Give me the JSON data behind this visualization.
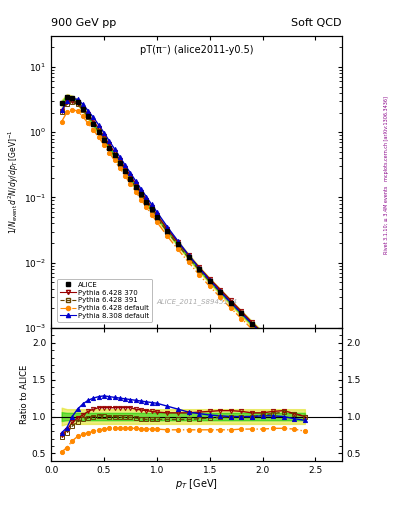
{
  "title_left": "900 GeV pp",
  "title_right": "Soft QCD",
  "plot_title": "pT(π⁻) (alice2011-y0.5)",
  "watermark": "ALICE_2011_S8945144",
  "right_label_top": "Rivet 3.1.10; ≥ 3.4M events",
  "right_label_bot": "mcplots.cern.ch [arXiv:1306.3436]",
  "ylabel_main": "1/N_{event} d^{2}N/dy/dp_{T} [GeV]^{-1}",
  "ylabel_ratio": "Ratio to ALICE",
  "xlabel": "p_{T} [GeV]",
  "xlim": [
    0.0,
    2.75
  ],
  "ylim_main": [
    0.001,
    30
  ],
  "ylim_ratio": [
    0.4,
    2.2
  ],
  "pt_values": [
    0.1,
    0.15,
    0.2,
    0.25,
    0.3,
    0.35,
    0.4,
    0.45,
    0.5,
    0.55,
    0.6,
    0.65,
    0.7,
    0.75,
    0.8,
    0.85,
    0.9,
    0.95,
    1.0,
    1.1,
    1.2,
    1.3,
    1.4,
    1.5,
    1.6,
    1.7,
    1.8,
    1.9,
    2.0,
    2.1,
    2.2,
    2.3,
    2.4
  ],
  "alice_data": [
    2.8,
    3.5,
    3.3,
    2.9,
    2.3,
    1.75,
    1.35,
    1.02,
    0.77,
    0.58,
    0.44,
    0.335,
    0.253,
    0.193,
    0.147,
    0.112,
    0.086,
    0.066,
    0.051,
    0.031,
    0.0195,
    0.0124,
    0.008,
    0.0053,
    0.0036,
    0.00245,
    0.00168,
    0.00116,
    0.000805,
    0.00056,
    0.000392,
    0.000275,
    0.000194
  ],
  "alice_err_rel": [
    0.06,
    0.05,
    0.05,
    0.05,
    0.05,
    0.05,
    0.05,
    0.05,
    0.05,
    0.05,
    0.05,
    0.05,
    0.05,
    0.05,
    0.05,
    0.05,
    0.05,
    0.05,
    0.05,
    0.05,
    0.05,
    0.05,
    0.05,
    0.05,
    0.05,
    0.05,
    0.05,
    0.05,
    0.05,
    0.05,
    0.05,
    0.05,
    0.05
  ],
  "ratio_370": [
    0.75,
    0.82,
    0.92,
    0.98,
    1.02,
    1.07,
    1.1,
    1.12,
    1.12,
    1.12,
    1.12,
    1.12,
    1.12,
    1.12,
    1.1,
    1.09,
    1.08,
    1.07,
    1.06,
    1.05,
    1.05,
    1.05,
    1.06,
    1.07,
    1.08,
    1.08,
    1.07,
    1.05,
    1.05,
    1.07,
    1.08,
    1.04,
    1.0
  ],
  "ratio_391": [
    0.72,
    0.78,
    0.87,
    0.93,
    0.96,
    0.98,
    1.0,
    1.01,
    1.01,
    1.0,
    1.0,
    0.99,
    0.99,
    0.99,
    0.98,
    0.97,
    0.96,
    0.96,
    0.96,
    0.96,
    0.96,
    0.96,
    0.97,
    0.98,
    0.99,
    1.0,
    1.0,
    1.0,
    1.02,
    1.04,
    1.06,
    1.04,
    1.0
  ],
  "ratio_default6": [
    0.52,
    0.58,
    0.67,
    0.73,
    0.76,
    0.78,
    0.8,
    0.82,
    0.83,
    0.84,
    0.84,
    0.84,
    0.84,
    0.84,
    0.84,
    0.83,
    0.83,
    0.83,
    0.83,
    0.82,
    0.82,
    0.82,
    0.82,
    0.82,
    0.82,
    0.82,
    0.83,
    0.83,
    0.83,
    0.84,
    0.84,
    0.83,
    0.8
  ],
  "ratio_default8": [
    0.78,
    0.85,
    1.0,
    1.1,
    1.17,
    1.22,
    1.25,
    1.27,
    1.28,
    1.27,
    1.26,
    1.25,
    1.24,
    1.23,
    1.22,
    1.21,
    1.2,
    1.19,
    1.18,
    1.14,
    1.1,
    1.06,
    1.04,
    1.02,
    1.01,
    1.0,
    1.0,
    1.0,
    1.01,
    1.01,
    1.0,
    0.97,
    0.95
  ],
  "color_alice": "#000000",
  "color_370": "#990000",
  "color_391": "#664400",
  "color_default6": "#FF8800",
  "color_default8": "#0000CC",
  "color_band_green": "#00CC00",
  "color_band_yellow": "#CCCC00",
  "legend_labels": [
    "ALICE",
    "Pythia 6.428 370",
    "Pythia 6.428 391",
    "Pythia 6.428 default",
    "Pythia 8.308 default"
  ]
}
